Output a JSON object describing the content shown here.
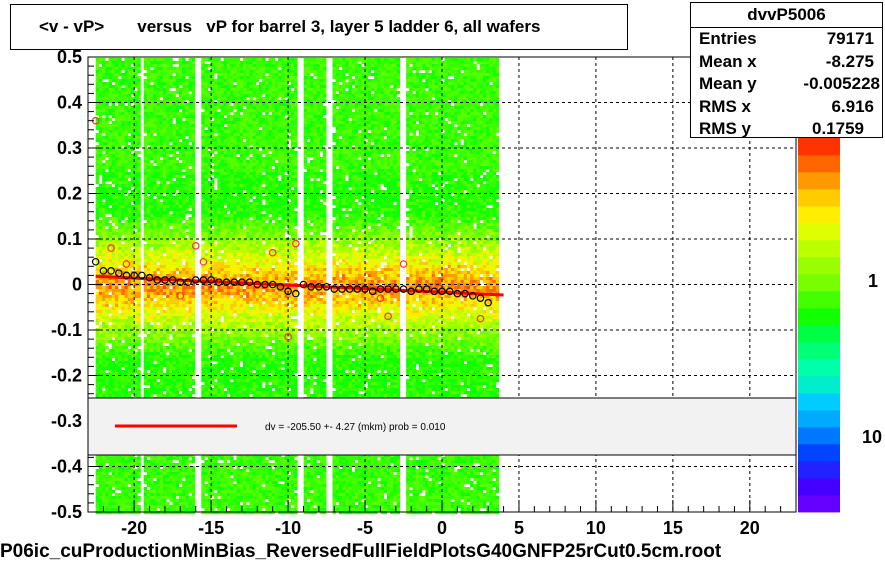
{
  "title": "<v - vP>       versus   vP for barrel 3, layer 5 ladder 6, all wafers",
  "footer": "P06ic_cuProductionMinBias_ReversedFullFieldPlotsG40GNFP25rCut0.5cm.root",
  "stats": {
    "name": "dvvP5006",
    "rows": [
      {
        "label": "Entries",
        "value": "79171"
      },
      {
        "label": "Mean x",
        "value": "-8.275"
      },
      {
        "label": "Mean y",
        "value": "-0.005228"
      },
      {
        "label": "RMS x",
        "value": "6.916"
      },
      {
        "label": "RMS y",
        "value": "0.1759"
      }
    ]
  },
  "legend": {
    "text": "dv = -205.50 +-  4.27 (mkm) prob = 0.010",
    "line_color": "#ff0000"
  },
  "palette_labels": [
    "1",
    "10"
  ],
  "colors": {
    "fit_line": "#ff0000",
    "mean_marker": "#000000",
    "outlier_marker": "#ff3333",
    "palette": [
      "#6600ff",
      "#4400ff",
      "#2222ff",
      "#0044ff",
      "#0077ff",
      "#00aaff",
      "#00ccff",
      "#00eecc",
      "#00ffaa",
      "#00ff77",
      "#00ff44",
      "#11ff00",
      "#44ff00",
      "#77ff00",
      "#99ff00",
      "#bbff00",
      "#ddff00",
      "#ffee00",
      "#ffcc00",
      "#ff9900",
      "#ff6600",
      "#ff3300"
    ]
  },
  "chart_data": {
    "type": "heatmap",
    "title": "<v - vP>       versus   vP for barrel 3, layer 5 ladder 6, all wafers",
    "xlabel": "",
    "ylabel": "",
    "xlim": [
      -23,
      23
    ],
    "ylim": [
      -0.5,
      0.5
    ],
    "x_ticks": [
      -20,
      -15,
      -10,
      -5,
      0,
      5,
      10,
      15,
      20
    ],
    "y_ticks": [
      -0.5,
      -0.4,
      -0.3,
      -0.2,
      -0.1,
      0,
      0.1,
      0.2,
      0.3,
      0.4,
      0.5
    ],
    "grid": true,
    "filled_x_range": [
      -22.5,
      3.5
    ],
    "gaps_x": [
      -19.6,
      -16.0,
      -9.3,
      -7.5,
      -2.6
    ],
    "fit_line": {
      "x": [
        -22.5,
        4.0
      ],
      "y": [
        0.018,
        -0.023
      ]
    },
    "mean_profile": {
      "x": [
        -22.5,
        -22.0,
        -21.5,
        -21.0,
        -20.5,
        -20.0,
        -19.5,
        -19.0,
        -18.5,
        -18.0,
        -17.5,
        -17.0,
        -16.5,
        -16.0,
        -15.5,
        -15.0,
        -14.5,
        -14.0,
        -13.5,
        -13.0,
        -12.5,
        -12.0,
        -11.5,
        -11.0,
        -10.5,
        -10.0,
        -9.5,
        -9.0,
        -8.5,
        -8.0,
        -7.5,
        -7.0,
        -6.5,
        -6.0,
        -5.5,
        -5.0,
        -4.5,
        -4.0,
        -3.5,
        -3.0,
        -2.5,
        -2.0,
        -1.5,
        -1.0,
        -0.5,
        0.0,
        0.5,
        1.0,
        1.5,
        2.0,
        2.5,
        3.0
      ],
      "y": [
        0.05,
        0.03,
        0.03,
        0.025,
        0.02,
        0.02,
        0.02,
        0.015,
        0.01,
        0.01,
        0.01,
        0.005,
        0.005,
        0.01,
        0.01,
        0.01,
        0.005,
        0.005,
        0.005,
        0.005,
        0.005,
        0.0,
        0.0,
        0.0,
        -0.005,
        -0.015,
        -0.02,
        0.0,
        -0.005,
        -0.005,
        -0.005,
        -0.01,
        -0.01,
        -0.01,
        -0.01,
        -0.01,
        -0.015,
        -0.01,
        -0.01,
        -0.01,
        -0.01,
        -0.015,
        -0.01,
        -0.01,
        -0.015,
        -0.015,
        -0.015,
        -0.02,
        -0.02,
        -0.025,
        -0.03,
        -0.04
      ]
    },
    "outliers": {
      "x": [
        -22.5,
        -21.5,
        -20.5,
        -16.0,
        -17.0,
        -15.5,
        -11.0,
        -10.0,
        -9.5,
        -4.0,
        -3.5,
        -2.5,
        2.5
      ],
      "y": [
        0.36,
        0.08,
        0.045,
        0.085,
        -0.025,
        0.05,
        0.07,
        -0.115,
        0.09,
        -0.03,
        -0.07,
        0.045,
        -0.075
      ]
    },
    "palette_scale": {
      "labels": [
        "1",
        "10"
      ]
    }
  }
}
